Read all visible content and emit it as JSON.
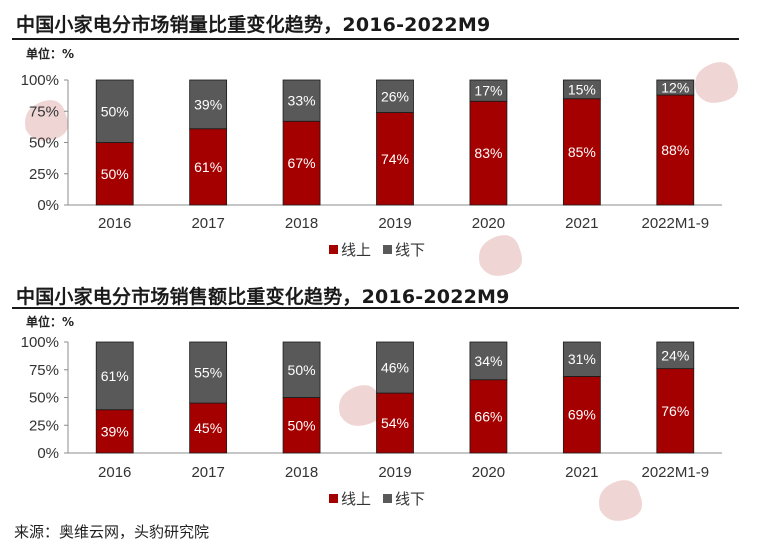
{
  "charts": [
    {
      "title": "中国小家电分市场销量比重变化趋势，2016-2022M9",
      "unit": "单位：%",
      "legend": [
        "线上",
        "线下"
      ]
    },
    {
      "title": "中国小家电分市场销售额比重变化趋势，2016-2022M9",
      "unit": "单位：%",
      "legend": [
        "线上",
        "线下"
      ]
    }
  ],
  "source": "来源：奥维云网，头豹研究院",
  "colors": {
    "online": "#a50000",
    "offline": "#595959",
    "axis": "#8c8c8c"
  },
  "chart_data": [
    {
      "type": "bar",
      "stacked": true,
      "title": "中国小家电分市场销量比重变化趋势，2016-2022M9",
      "categories": [
        "2016",
        "2017",
        "2018",
        "2019",
        "2020",
        "2021",
        "2022M1-9"
      ],
      "series": [
        {
          "name": "线上",
          "values": [
            50,
            61,
            67,
            74,
            83,
            85,
            88
          ],
          "labels": [
            "50%",
            "61%",
            "67%",
            "74%",
            "83%",
            "85%",
            "88%"
          ]
        },
        {
          "name": "线下",
          "values": [
            50,
            39,
            33,
            26,
            17,
            15,
            12
          ],
          "labels": [
            "50%",
            "39%",
            "33%",
            "26%",
            "17%",
            "15%",
            "12%"
          ]
        }
      ],
      "yticks": [
        "0%",
        "25%",
        "50%",
        "75%",
        "100%"
      ],
      "ylim": [
        0,
        100
      ],
      "legend_position": "bottom"
    },
    {
      "type": "bar",
      "stacked": true,
      "title": "中国小家电分市场销售额比重变化趋势，2016-2022M9",
      "categories": [
        "2016",
        "2017",
        "2018",
        "2019",
        "2020",
        "2021",
        "2022M1-9"
      ],
      "series": [
        {
          "name": "线上",
          "values": [
            39,
            45,
            50,
            54,
            66,
            69,
            76
          ],
          "labels": [
            "39%",
            "45%",
            "50%",
            "54%",
            "66%",
            "69%",
            "76%"
          ]
        },
        {
          "name": "线下",
          "values": [
            61,
            55,
            50,
            46,
            34,
            31,
            24
          ],
          "labels": [
            "61%",
            "55%",
            "50%",
            "46%",
            "34%",
            "31%",
            "24%"
          ]
        }
      ],
      "yticks": [
        "0%",
        "25%",
        "50%",
        "75%",
        "100%"
      ],
      "ylim": [
        0,
        100
      ],
      "legend_position": "bottom"
    }
  ]
}
